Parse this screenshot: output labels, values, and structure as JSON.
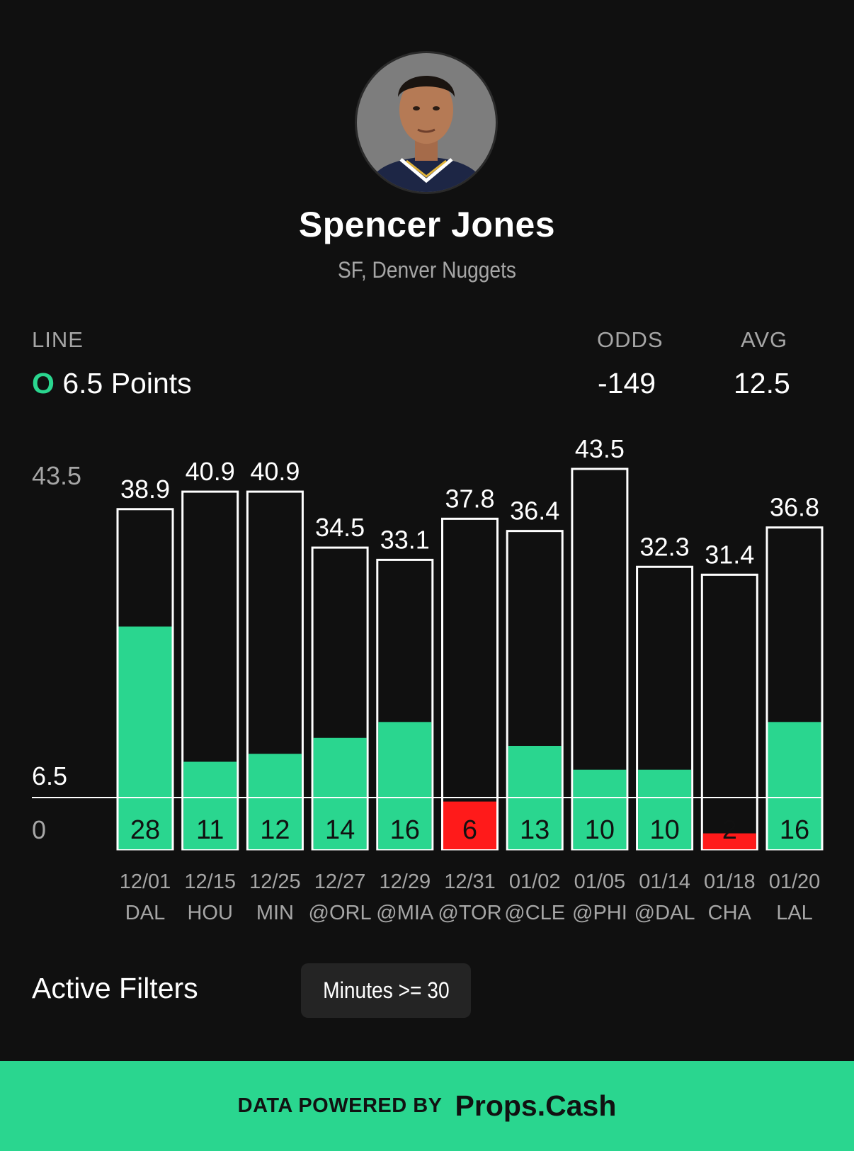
{
  "player": {
    "name": "Spencer Jones",
    "subtitle": "SF, Denver Nuggets"
  },
  "stats": {
    "line_label": "LINE",
    "line_side": "O",
    "line_value": "6.5 Points",
    "odds_label": "ODDS",
    "odds_value": "-149",
    "avg_label": "AVG",
    "avg_value": "12.5"
  },
  "colors": {
    "accent": "#2ad68f",
    "miss": "#ff1a1a",
    "background": "#101010"
  },
  "chart_data": {
    "type": "bar",
    "categories": [
      "12/01 DAL",
      "12/15 HOU",
      "12/25 MIN",
      "12/27 @ORL",
      "12/29 @MIA",
      "12/31 @TOR",
      "01/02 @CLE",
      "01/05 @PHI",
      "01/14 @DAL",
      "01/18 CHA",
      "01/20 LAL"
    ],
    "dates": [
      "12/01",
      "12/15",
      "12/25",
      "12/27",
      "12/29",
      "12/31",
      "01/02",
      "01/05",
      "01/14",
      "01/18",
      "01/20"
    ],
    "opponents": [
      "DAL",
      "HOU",
      "MIN",
      "@ORL",
      "@MIA",
      "@TOR",
      "@CLE",
      "@PHI",
      "@DAL",
      "CHA",
      "LAL"
    ],
    "points": [
      28,
      11,
      12,
      14,
      16,
      6,
      13,
      10,
      10,
      2,
      16
    ],
    "minutes": [
      38.9,
      40.9,
      40.9,
      34.5,
      33.1,
      37.8,
      36.4,
      43.5,
      32.3,
      31.4,
      36.8
    ],
    "minutes_labels": [
      "38.9",
      "40.9",
      "40.9",
      "34.5",
      "33.1",
      "37.8",
      "36.4",
      "43.5",
      "32.3",
      "31.4",
      "36.8"
    ],
    "y_ticks": [
      "43.5",
      "6.5",
      "0"
    ],
    "line": 6.5,
    "ymax": 43.5
  },
  "filters": {
    "label": "Active Filters",
    "chips": [
      "Minutes >= 30"
    ]
  },
  "footer": {
    "prefix": "DATA POWERED BY",
    "brand": "Props.Cash"
  }
}
